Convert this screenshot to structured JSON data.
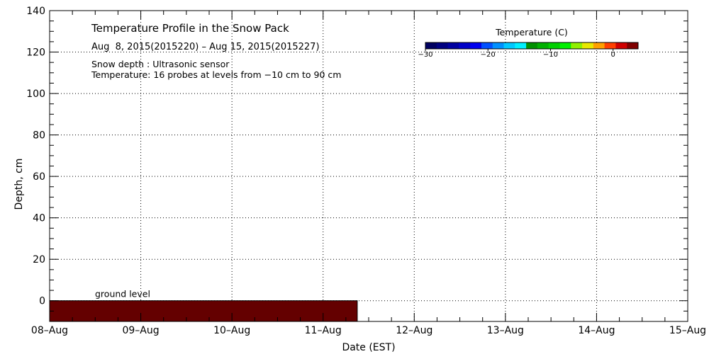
{
  "chart_data": {
    "type": "heatmap",
    "title": "Temperature Profile in the Snow Pack",
    "subtitle": "Aug  8, 2015(2015220) – Aug 15, 2015(2015227)",
    "notes": [
      "Snow depth : Ultrasonic sensor",
      "Temperature: 16 probes at levels from −10 cm to 90 cm"
    ],
    "xlabel": "Date (EST)",
    "ylabel": "Depth, cm",
    "x_ticks": [
      "08–Aug",
      "09–Aug",
      "10–Aug",
      "11–Aug",
      "12–Aug",
      "13–Aug",
      "14–Aug",
      "15–Aug"
    ],
    "xlim": [
      "2015-08-08",
      "2015-08-15"
    ],
    "ylim": [
      -10,
      140
    ],
    "y_ticks": [
      0,
      20,
      40,
      60,
      80,
      100,
      120,
      140
    ],
    "grid": true,
    "ground": {
      "label": "ground level",
      "depth_cm": 0,
      "x_start": "2015-08-08",
      "x_end": "2015-08-11 09:00",
      "color": "#640000"
    },
    "colorbar": {
      "title": "Temperature (C)",
      "placement": "top-right",
      "tick_values": [
        -30,
        -20,
        -10,
        0
      ],
      "tick_labels": [
        "−30",
        "−20",
        "−10",
        "0"
      ],
      "range": [
        -30,
        4
      ],
      "colors": [
        "#000060",
        "#000080",
        "#0000a0",
        "#0000c8",
        "#0000f0",
        "#0050ff",
        "#0090ff",
        "#00c8ff",
        "#00f0ff",
        "#009000",
        "#00b000",
        "#00d000",
        "#00f000",
        "#90f000",
        "#e8e800",
        "#ffa000",
        "#ff4000",
        "#d00000",
        "#800000"
      ]
    }
  }
}
